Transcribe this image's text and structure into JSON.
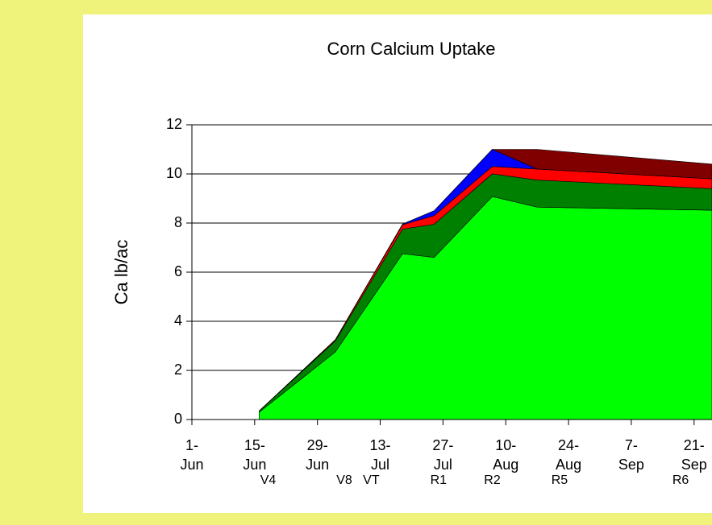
{
  "chart_data": {
    "type": "stacked_area",
    "title": "Corn Calcium Uptake",
    "y_label": "Ca lb/ac",
    "x": [
      167,
      184,
      199,
      206,
      219,
      229,
      268
    ],
    "series": [
      {
        "color": "#00ff00",
        "values": [
          0.3,
          2.75,
          6.75,
          6.6,
          9.08,
          8.65,
          8.52
        ]
      },
      {
        "color": "#008000",
        "values": [
          0.05,
          0.45,
          1.0,
          1.35,
          0.92,
          1.1,
          0.88
        ]
      },
      {
        "color": "#ff0000",
        "values": [
          0.0,
          0.05,
          0.18,
          0.35,
          0.3,
          0.45,
          0.4
        ]
      },
      {
        "color": "#0000ff",
        "values": [
          0.0,
          0.0,
          0.03,
          0.2,
          0.7,
          0.0,
          0.0
        ]
      },
      {
        "color": "#800000",
        "values": [
          0.0,
          0.0,
          0.0,
          0.0,
          0.0,
          0.8,
          0.6
        ]
      }
    ],
    "xlim": [
      152,
      268
    ],
    "xticks": [
      {
        "value": 152,
        "label": "1-\nJun"
      },
      {
        "value": 166,
        "label": "15-\nJun"
      },
      {
        "value": 180,
        "label": "29-\nJun"
      },
      {
        "value": 194,
        "label": "13-\nJul"
      },
      {
        "value": 208,
        "label": "27-\nJul"
      },
      {
        "value": 222,
        "label": "10-\nAug"
      },
      {
        "value": 236,
        "label": "24-\nAug"
      },
      {
        "value": 250,
        "label": "7-\nSep"
      },
      {
        "value": 264,
        "label": "21-\nSep"
      }
    ],
    "ylim": [
      0,
      12
    ],
    "yticks": [
      0,
      2,
      4,
      6,
      8,
      10,
      12
    ],
    "grid": true,
    "annotations": [
      {
        "x": 169,
        "label": "V4"
      },
      {
        "x": 186,
        "label": "V8"
      },
      {
        "x": 192,
        "label": "VT"
      },
      {
        "x": 207,
        "label": "R1"
      },
      {
        "x": 219,
        "label": "R2"
      },
      {
        "x": 234,
        "label": "R5"
      },
      {
        "x": 261,
        "label": "R6"
      }
    ]
  }
}
